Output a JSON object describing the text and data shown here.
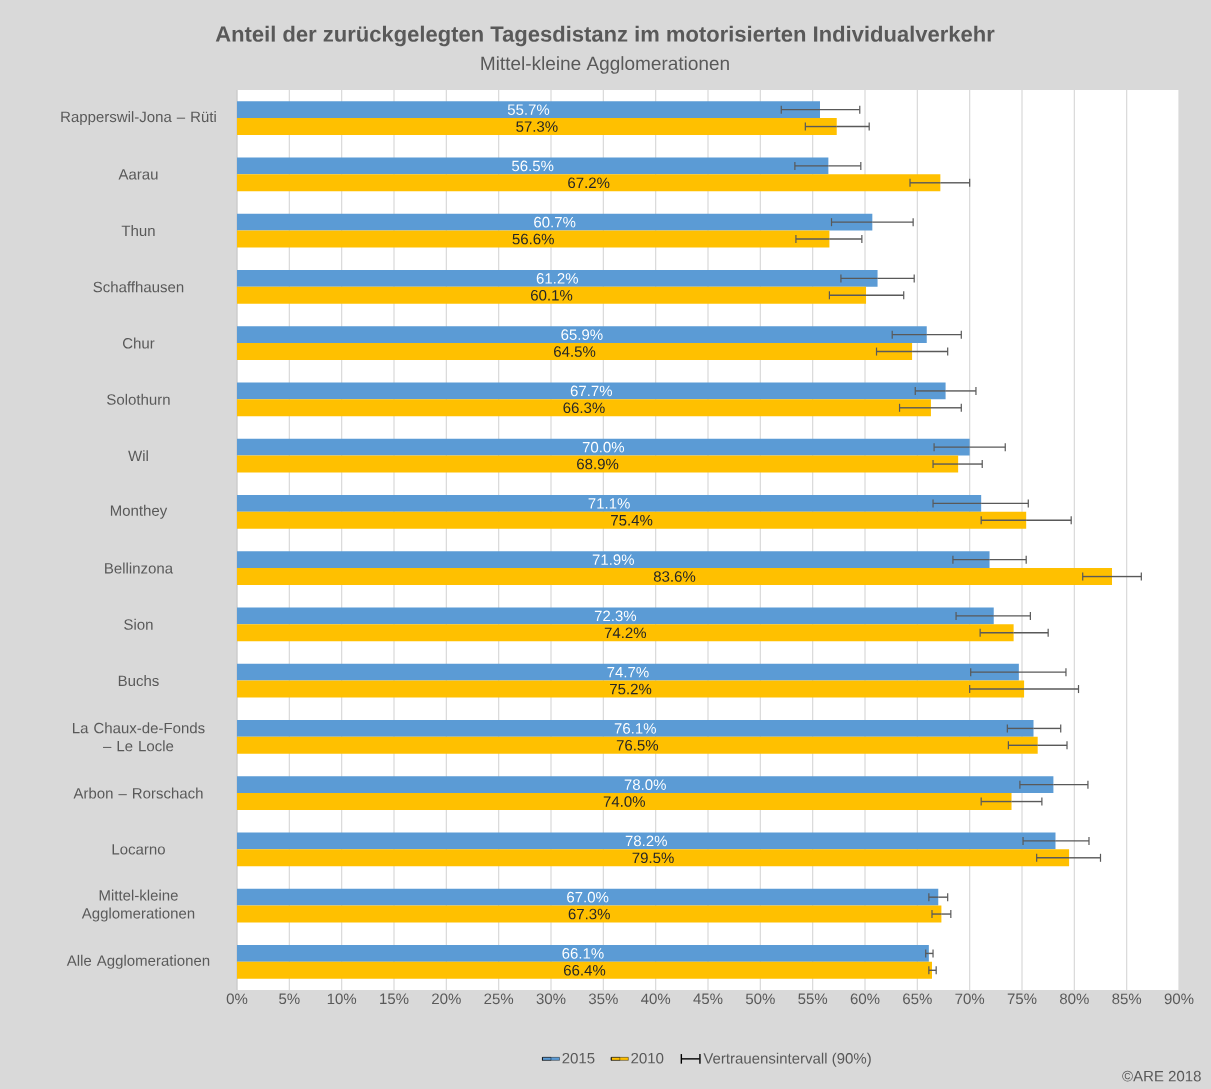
{
  "chart_data": {
    "type": "bar",
    "orientation": "horizontal",
    "title": "Anteil der zurückgelegten Tagesdistanz im motorisierten Individualverkehr",
    "subtitle": "Mittel-kleine Agglomerationen",
    "categories": [
      "Rapperswil-Jona – Rüti",
      "Aarau",
      "Thun",
      "Schaffhausen",
      "Chur",
      "Solothurn",
      "Wil",
      "Monthey",
      "Bellinzona",
      "Sion",
      "Buchs",
      "La Chaux-de-Fonds – Le Locle",
      "Arbon – Rorschach",
      "Locarno",
      "Mittel-kleine Agglomerationen",
      "Alle Agglomerationen"
    ],
    "series": [
      {
        "name": "2015",
        "color": "#5b9bd5",
        "values": [
          55.7,
          56.5,
          60.7,
          61.2,
          65.9,
          67.7,
          70.0,
          71.1,
          71.9,
          72.3,
          74.7,
          76.1,
          78.0,
          78.2,
          67.0,
          66.1
        ],
        "value_labels": [
          "55.7%",
          "56.5%",
          "60.7%",
          "61.2%",
          "65.9%",
          "67.7%",
          "70.0%",
          "71.1%",
          "71.9%",
          "72.3%",
          "74.7%",
          "76.1%",
          "78.0%",
          "78.2%",
          "67.0%",
          "66.1%"
        ],
        "errors": [
          [
            52.0,
            59.5
          ],
          [
            53.3,
            59.6
          ],
          [
            56.8,
            64.6
          ],
          [
            57.7,
            64.7
          ],
          [
            62.6,
            69.2
          ],
          [
            64.8,
            70.6
          ],
          [
            66.6,
            73.4
          ],
          [
            66.5,
            75.6
          ],
          [
            68.4,
            75.4
          ],
          [
            68.7,
            75.8
          ],
          [
            70.1,
            79.2
          ],
          [
            73.6,
            78.7
          ],
          [
            74.8,
            81.3
          ],
          [
            75.1,
            81.4
          ],
          [
            66.1,
            67.9
          ],
          [
            65.8,
            66.5
          ]
        ]
      },
      {
        "name": "2010",
        "color": "#ffc000",
        "values": [
          57.3,
          67.2,
          56.6,
          60.1,
          64.5,
          66.3,
          68.9,
          75.4,
          83.6,
          74.2,
          75.2,
          76.5,
          74.0,
          79.5,
          67.3,
          66.4
        ],
        "value_labels": [
          "57.3%",
          "67.2%",
          "56.6%",
          "60.1%",
          "64.5%",
          "66.3%",
          "68.9%",
          "75.4%",
          "83.6%",
          "74.2%",
          "75.2%",
          "76.5%",
          "74.0%",
          "79.5%",
          "67.3%",
          "66.4%"
        ],
        "errors": [
          [
            54.3,
            60.4
          ],
          [
            64.3,
            70.0
          ],
          [
            53.4,
            59.7
          ],
          [
            56.6,
            63.7
          ],
          [
            61.1,
            67.9
          ],
          [
            63.3,
            69.2
          ],
          [
            66.5,
            71.2
          ],
          [
            71.1,
            79.7
          ],
          [
            80.8,
            86.4
          ],
          [
            71.0,
            77.5
          ],
          [
            70.0,
            80.4
          ],
          [
            73.7,
            79.3
          ],
          [
            71.1,
            76.9
          ],
          [
            76.4,
            82.5
          ],
          [
            66.4,
            68.2
          ],
          [
            66.1,
            66.8
          ]
        ]
      }
    ],
    "xlim": [
      0,
      90
    ],
    "xticks": [
      {
        "value": 0,
        "label": "0%"
      },
      {
        "value": 5,
        "label": "5%"
      },
      {
        "value": 10,
        "label": "10%"
      },
      {
        "value": 15,
        "label": "15%"
      },
      {
        "value": 20,
        "label": "20%"
      },
      {
        "value": 25,
        "label": "25%"
      },
      {
        "value": 30,
        "label": "30%"
      },
      {
        "value": 35,
        "label": "35%"
      },
      {
        "value": 40,
        "label": "40%"
      },
      {
        "value": 45,
        "label": "45%"
      },
      {
        "value": 50,
        "label": "50%"
      },
      {
        "value": 55,
        "label": "55%"
      },
      {
        "value": 60,
        "label": "60%"
      },
      {
        "value": 65,
        "label": "65%"
      },
      {
        "value": 70,
        "label": "70%"
      },
      {
        "value": 75,
        "label": "75%"
      },
      {
        "value": 80,
        "label": "80%"
      },
      {
        "value": 85,
        "label": "85%"
      },
      {
        "value": 90,
        "label": "90%"
      }
    ],
    "grid": "x",
    "legend": "bottom",
    "annotations": [
      "Vertrauensintervall (90%)",
      "©ARE 2018"
    ]
  }
}
